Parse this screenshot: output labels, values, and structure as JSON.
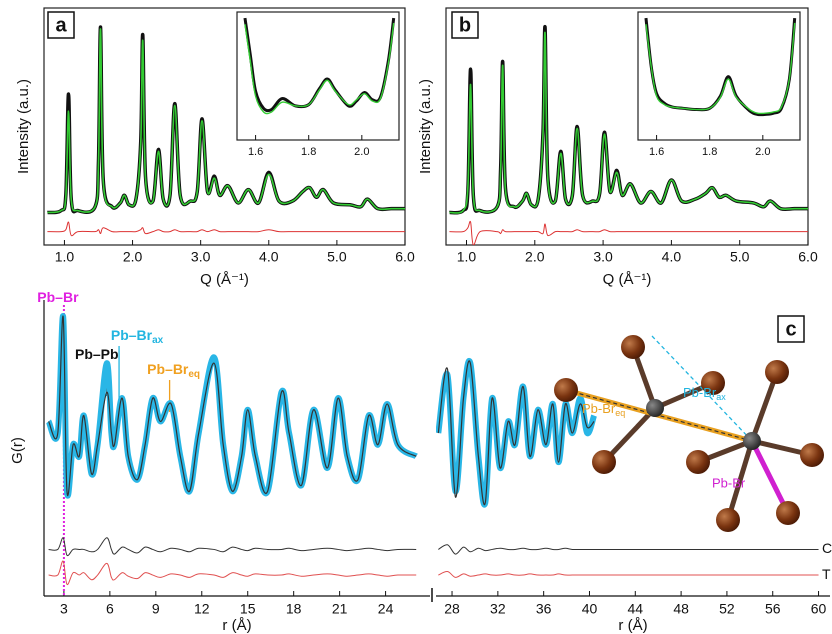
{
  "chart_data": [
    {
      "type": "line",
      "panel_label": "a",
      "xlabel": "Q (Å⁻¹)",
      "ylabel": "Intensity (a.u.)",
      "xlim": [
        0.7,
        6.0
      ],
      "ylim": [
        -14,
        110
      ],
      "xticks": [
        {
          "value": 1,
          "label": "1.0"
        },
        {
          "value": 2,
          "label": "2.0"
        },
        {
          "value": 3,
          "label": "3.0"
        },
        {
          "value": 4,
          "label": "4.0"
        },
        {
          "value": 5,
          "label": "5.0"
        },
        {
          "value": 6,
          "label": "6.0"
        }
      ],
      "x": [
        0.75,
        0.95,
        1.02,
        1.06,
        1.1,
        1.2,
        1.45,
        1.5,
        1.53,
        1.57,
        1.7,
        1.82,
        1.88,
        1.95,
        2.05,
        2.12,
        2.15,
        2.19,
        2.3,
        2.38,
        2.45,
        2.55,
        2.62,
        2.7,
        2.85,
        2.95,
        3.02,
        3.1,
        3.2,
        3.28,
        3.4,
        3.55,
        3.7,
        3.85,
        4.0,
        4.15,
        4.35,
        4.5,
        4.6,
        4.7,
        4.8,
        4.95,
        5.2,
        5.35,
        5.45,
        5.6,
        5.8,
        6.0
      ],
      "series": [
        {
          "color": "#111111",
          "values": [
            3,
            4,
            12,
            65,
            10,
            4,
            6,
            30,
            100,
            20,
            6,
            8,
            12,
            7,
            10,
            40,
            96,
            22,
            9,
            36,
            10,
            12,
            60,
            12,
            9,
            14,
            52,
            14,
            22,
            12,
            17,
            8,
            15,
            8,
            24,
            9,
            9,
            14,
            16,
            11,
            15,
            8,
            7,
            6,
            10,
            5,
            5,
            5
          ]
        },
        {
          "color": "#33cc33",
          "values": [
            3,
            4,
            11,
            56,
            10,
            4,
            6,
            29,
            99,
            19,
            6,
            8,
            12,
            7,
            10,
            39,
            93,
            21,
            9,
            35,
            10,
            12,
            59,
            12,
            9,
            14,
            51,
            14,
            21,
            12,
            17,
            8,
            15,
            8,
            23,
            9,
            9,
            14,
            16,
            11,
            15,
            8,
            7,
            6,
            10,
            5,
            5,
            5
          ]
        },
        {
          "color": "#dd3333",
          "values": [
            -7,
            -7,
            -6,
            -2,
            -9,
            -7,
            -7,
            -6,
            -8,
            -5,
            -7,
            -7,
            -7,
            -7,
            -7,
            -6,
            -5,
            -8,
            -7,
            -6,
            -7,
            -7,
            -6,
            -7,
            -7,
            -7,
            -6,
            -7,
            -6,
            -7,
            -7,
            -7,
            -7,
            -7,
            -6,
            -7,
            -7,
            -7,
            -7,
            -7,
            -7,
            -7,
            -7,
            -7,
            -7,
            -7,
            -7,
            -7
          ]
        }
      ]
    },
    {
      "type": "line",
      "xlim": [
        1.53,
        2.14
      ],
      "ylim": [
        0,
        10.5
      ],
      "xticks": [
        1.6,
        1.8,
        {
          "value": 2,
          "label": "2.0"
        }
      ],
      "x": [
        1.56,
        1.58,
        1.6,
        1.63,
        1.66,
        1.7,
        1.75,
        1.8,
        1.84,
        1.87,
        1.9,
        1.95,
        1.98,
        2.01,
        2.04,
        2.07,
        2.1,
        2.12
      ],
      "series": [
        {
          "color": "#111111",
          "values": [
            10,
            7,
            4,
            2.6,
            2.5,
            3.4,
            2.8,
            2.9,
            4.2,
            5,
            4.1,
            2.8,
            3.2,
            3.9,
            3.3,
            3.5,
            6.5,
            10
          ]
        },
        {
          "color": "#33cc33",
          "values": [
            9.5,
            6.5,
            3.6,
            2.3,
            2.3,
            3.1,
            2.8,
            2.9,
            4.1,
            4.9,
            4,
            2.9,
            3.3,
            3.8,
            3.2,
            3.4,
            6.3,
            9.6
          ]
        }
      ]
    },
    {
      "type": "line",
      "panel_label": "b",
      "xlabel": "Q (Å⁻¹)",
      "ylabel": "Intensity (a.u.)",
      "xlim": [
        0.7,
        6.0
      ],
      "ylim": [
        -14,
        110
      ],
      "xticks": [
        {
          "value": 1,
          "label": "1.0"
        },
        {
          "value": 2,
          "label": "2.0"
        },
        {
          "value": 3,
          "label": "3.0"
        },
        {
          "value": 4,
          "label": "4.0"
        },
        {
          "value": 5,
          "label": "5.0"
        },
        {
          "value": 6,
          "label": "6.0"
        }
      ],
      "x": [
        0.75,
        0.95,
        1.02,
        1.06,
        1.1,
        1.2,
        1.45,
        1.5,
        1.53,
        1.57,
        1.7,
        1.82,
        1.88,
        1.95,
        2.05,
        2.12,
        2.15,
        2.19,
        2.3,
        2.38,
        2.45,
        2.55,
        2.62,
        2.7,
        2.85,
        2.95,
        3.02,
        3.1,
        3.2,
        3.28,
        3.4,
        3.55,
        3.7,
        3.85,
        4.0,
        4.15,
        4.35,
        4.5,
        4.6,
        4.7,
        4.8,
        4.95,
        5.2,
        5.35,
        5.45,
        5.6,
        5.8,
        6.0
      ],
      "series": [
        {
          "color": "#111111",
          "values": [
            3,
            4,
            14,
            78,
            12,
            4,
            6,
            26,
            82,
            16,
            6,
            9,
            13,
            7,
            10,
            45,
            100,
            22,
            9,
            35,
            10,
            12,
            48,
            12,
            9,
            13,
            45,
            14,
            25,
            12,
            18,
            8,
            14,
            8,
            20,
            9,
            10,
            13,
            16,
            11,
            12,
            9,
            8,
            6,
            9,
            5,
            5,
            5
          ]
        },
        {
          "color": "#33cc33",
          "values": [
            3,
            4,
            16,
            70,
            12,
            4,
            6,
            25,
            80,
            15,
            6,
            9,
            13,
            7,
            10,
            44,
            97,
            21,
            9,
            34,
            10,
            12,
            47,
            12,
            9,
            13,
            44,
            14,
            24,
            12,
            18,
            8,
            14,
            8,
            20,
            9,
            10,
            13,
            16,
            11,
            12,
            9,
            8,
            6,
            9,
            5,
            5,
            5
          ]
        },
        {
          "color": "#dd3333",
          "values": [
            -7,
            -7,
            -5,
            -2,
            -14,
            -7,
            -7,
            -8,
            -6,
            -7,
            -7,
            -7,
            -7,
            -7,
            -7,
            -8,
            -3,
            -9,
            -7,
            -7,
            -7,
            -7,
            -6,
            -7,
            -7,
            -7,
            -6,
            -7,
            -7,
            -7,
            -7,
            -7,
            -7,
            -7,
            -7,
            -7,
            -7,
            -7,
            -7,
            -7,
            -7,
            -7,
            -7,
            -7,
            -7,
            -7,
            -7,
            -7
          ]
        }
      ]
    },
    {
      "type": "line",
      "xlim": [
        1.53,
        2.14
      ],
      "ylim": [
        0,
        10.5
      ],
      "xticks": [
        1.6,
        1.8,
        {
          "value": 2,
          "label": "2.0"
        }
      ],
      "x": [
        1.56,
        1.58,
        1.6,
        1.63,
        1.66,
        1.7,
        1.75,
        1.8,
        1.84,
        1.87,
        1.9,
        1.95,
        1.98,
        2.01,
        2.04,
        2.07,
        2.1,
        2.12
      ],
      "series": [
        {
          "color": "#111111",
          "values": [
            10,
            6,
            3.8,
            3,
            2.7,
            2.6,
            2.5,
            2.6,
            3.6,
            5.2,
            3.6,
            2.4,
            2.1,
            2.1,
            2.2,
            2.6,
            5,
            10
          ]
        },
        {
          "color": "#33cc33",
          "values": [
            9.5,
            6,
            3.6,
            2.9,
            2.7,
            2.6,
            2.5,
            2.6,
            3.5,
            5,
            3.5,
            2.5,
            2.2,
            2.2,
            2.3,
            2.7,
            5,
            9.6
          ]
        }
      ]
    },
    {
      "type": "line",
      "panel_label": "c",
      "xlabel": "r (Å)",
      "ylabel": "G(r)",
      "xlim": [
        1.7,
        26.9
      ],
      "ylim": [
        -15,
        10
      ],
      "xticks": [
        3,
        6,
        9,
        12,
        15,
        18,
        21,
        24
      ],
      "x": [
        2.0,
        2.6,
        2.95,
        3.2,
        3.6,
        4.0,
        4.3,
        4.8,
        5.2,
        5.8,
        6.1,
        6.3,
        6.8,
        7.2,
        7.8,
        8.3,
        8.8,
        9.3,
        10.0,
        10.6,
        11.2,
        11.8,
        12.8,
        13.4,
        14.0,
        14.6,
        15.0,
        15.5,
        16.3,
        17.2,
        17.7,
        18.5,
        19.3,
        20.2,
        20.9,
        21.5,
        22.2,
        22.9,
        23.5,
        24.1,
        24.8,
        26.0
      ],
      "series": [
        {
          "color": "#29b6e6",
          "values": [
            0,
            -1,
            9,
            -6,
            -2,
            -3,
            0.5,
            -4.5,
            -2,
            5,
            -1,
            -2,
            2,
            -3,
            -5,
            -2,
            2,
            0,
            1.5,
            -3,
            -6,
            -1,
            5.5,
            -2,
            -6,
            -3,
            1,
            -3,
            -6,
            2.5,
            -1,
            -5.5,
            1,
            -4,
            2,
            -3,
            -5,
            0.5,
            -2,
            1.5,
            -2,
            -3
          ]
        },
        {
          "color": "#333333",
          "values": [
            0,
            -1,
            9,
            -6,
            -2,
            -3,
            0.5,
            -4.5,
            -2,
            2.5,
            -1,
            -2,
            2,
            -3,
            -5,
            -2,
            2,
            0,
            1.5,
            -3,
            -6,
            -1,
            5,
            -2,
            -6,
            -3,
            1,
            -3,
            -6,
            2.5,
            -1,
            -5.5,
            1,
            -4,
            2,
            -3,
            -5,
            0.5,
            -2,
            1.5,
            -2,
            -3
          ]
        },
        {
          "color": "#333333",
          "values": [
            -11,
            -11,
            -10,
            -11.5,
            -11,
            -11,
            -11,
            -11.2,
            -11,
            -10,
            -11,
            -11.4,
            -10.8,
            -11,
            -11.3,
            -10.8,
            -11,
            -11.2,
            -10.9,
            -11,
            -11.2,
            -10.9,
            -11,
            -11.2,
            -10.8,
            -11,
            -11.1,
            -10.9,
            -11,
            -11,
            -10.9,
            -11.1,
            -11,
            -10.9,
            -11,
            -11.1,
            -11,
            -10.9,
            -11,
            -11.1,
            -11,
            -11
          ]
        },
        {
          "color": "#e05050",
          "values": [
            -13.2,
            -13.2,
            -12,
            -14,
            -13,
            -13.2,
            -13,
            -13.6,
            -13.2,
            -12.2,
            -13.4,
            -13.6,
            -13,
            -13.3,
            -13.5,
            -13,
            -13.2,
            -13.4,
            -13.1,
            -13.2,
            -13.4,
            -13.1,
            -13.2,
            -13.4,
            -13,
            -13.2,
            -13.3,
            -13.1,
            -13.2,
            -13.2,
            -13.1,
            -13.3,
            -13.2,
            -13.1,
            -13.2,
            -13.3,
            -13.2,
            -13.1,
            -13.2,
            -13.3,
            -13.2,
            -13.2
          ]
        }
      ],
      "annotations": [
        {
          "text": "Pb–Br",
          "r": 3,
          "color": "#e020e0"
        },
        {
          "text": "Pb–Pb",
          "r": 5.8,
          "color": "#111111"
        },
        {
          "text": "Pb–Br",
          "sub": "ax",
          "r": 6.6,
          "color": "#22b5e0"
        },
        {
          "text": "Pb–Br",
          "sub": "eq",
          "r": 9.9,
          "color": "#f0a020"
        }
      ]
    },
    {
      "type": "line",
      "xlabel": "r (Å)",
      "xlim": [
        26.6,
        61
      ],
      "ylim": [
        -15,
        10
      ],
      "xticks": [
        28,
        32,
        36,
        40,
        44,
        48,
        52,
        56,
        60
      ],
      "x": [
        26.8,
        27.6,
        28.3,
        29.0,
        29.6,
        30.3,
        30.9,
        31.5,
        32.2,
        32.9,
        33.5,
        34.2,
        34.8,
        35.5,
        36.2,
        36.8,
        37.3,
        37.9,
        38.5,
        39.2,
        39.8,
        40.4,
        44,
        48,
        52,
        56,
        60
      ],
      "series": [
        {
          "color": "#29b6e6",
          "values": [
            -1,
            4,
            -6,
            2,
            5,
            -3,
            -7,
            2,
            -4,
            0,
            -2,
            3,
            -3,
            1,
            -2,
            1.5,
            -3.5,
            1.5,
            -1,
            2,
            -1,
            0.5,
            null,
            null,
            null,
            null,
            null
          ]
        },
        {
          "color": "#333333",
          "values": [
            -1,
            4.5,
            -6.5,
            2,
            5,
            -3,
            -7,
            2,
            -4,
            0,
            -2,
            3,
            -3,
            1,
            -2,
            1.5,
            -3.5,
            1.5,
            -1,
            1.5,
            -0.5,
            0,
            null,
            null,
            null,
            null,
            null
          ]
        },
        {
          "name": "C",
          "color": "#333333",
          "values": [
            -11,
            -10.6,
            -11.4,
            -10.8,
            -11.2,
            -10.9,
            -11.1,
            -11,
            -10.9,
            -11,
            -11,
            -10.9,
            -11,
            -11,
            -10.9,
            -11,
            -11,
            -10.9,
            -11,
            -11,
            -11,
            -11,
            -11,
            -11,
            -11,
            -11,
            -11
          ]
        },
        {
          "name": "T",
          "color": "#e05050",
          "values": [
            -13.2,
            -12.9,
            -13.4,
            -13.1,
            -13.3,
            -13.2,
            -13.1,
            -13.2,
            -13.2,
            -13.1,
            -13.2,
            -13.2,
            -13.1,
            -13.2,
            -13.2,
            -13.2,
            -13.1,
            -13.2,
            -13.2,
            -13.2,
            -13.2,
            -13.2,
            -13.2,
            -13.2,
            -13.2,
            -13.2,
            -13.2
          ]
        }
      ]
    }
  ],
  "diagram": {
    "labels": [
      {
        "text": "Pb-Br",
        "sub": "ax"
      },
      {
        "text": "Pb-Br",
        "sub": "eq"
      },
      {
        "text": "Pb-Br"
      }
    ]
  }
}
